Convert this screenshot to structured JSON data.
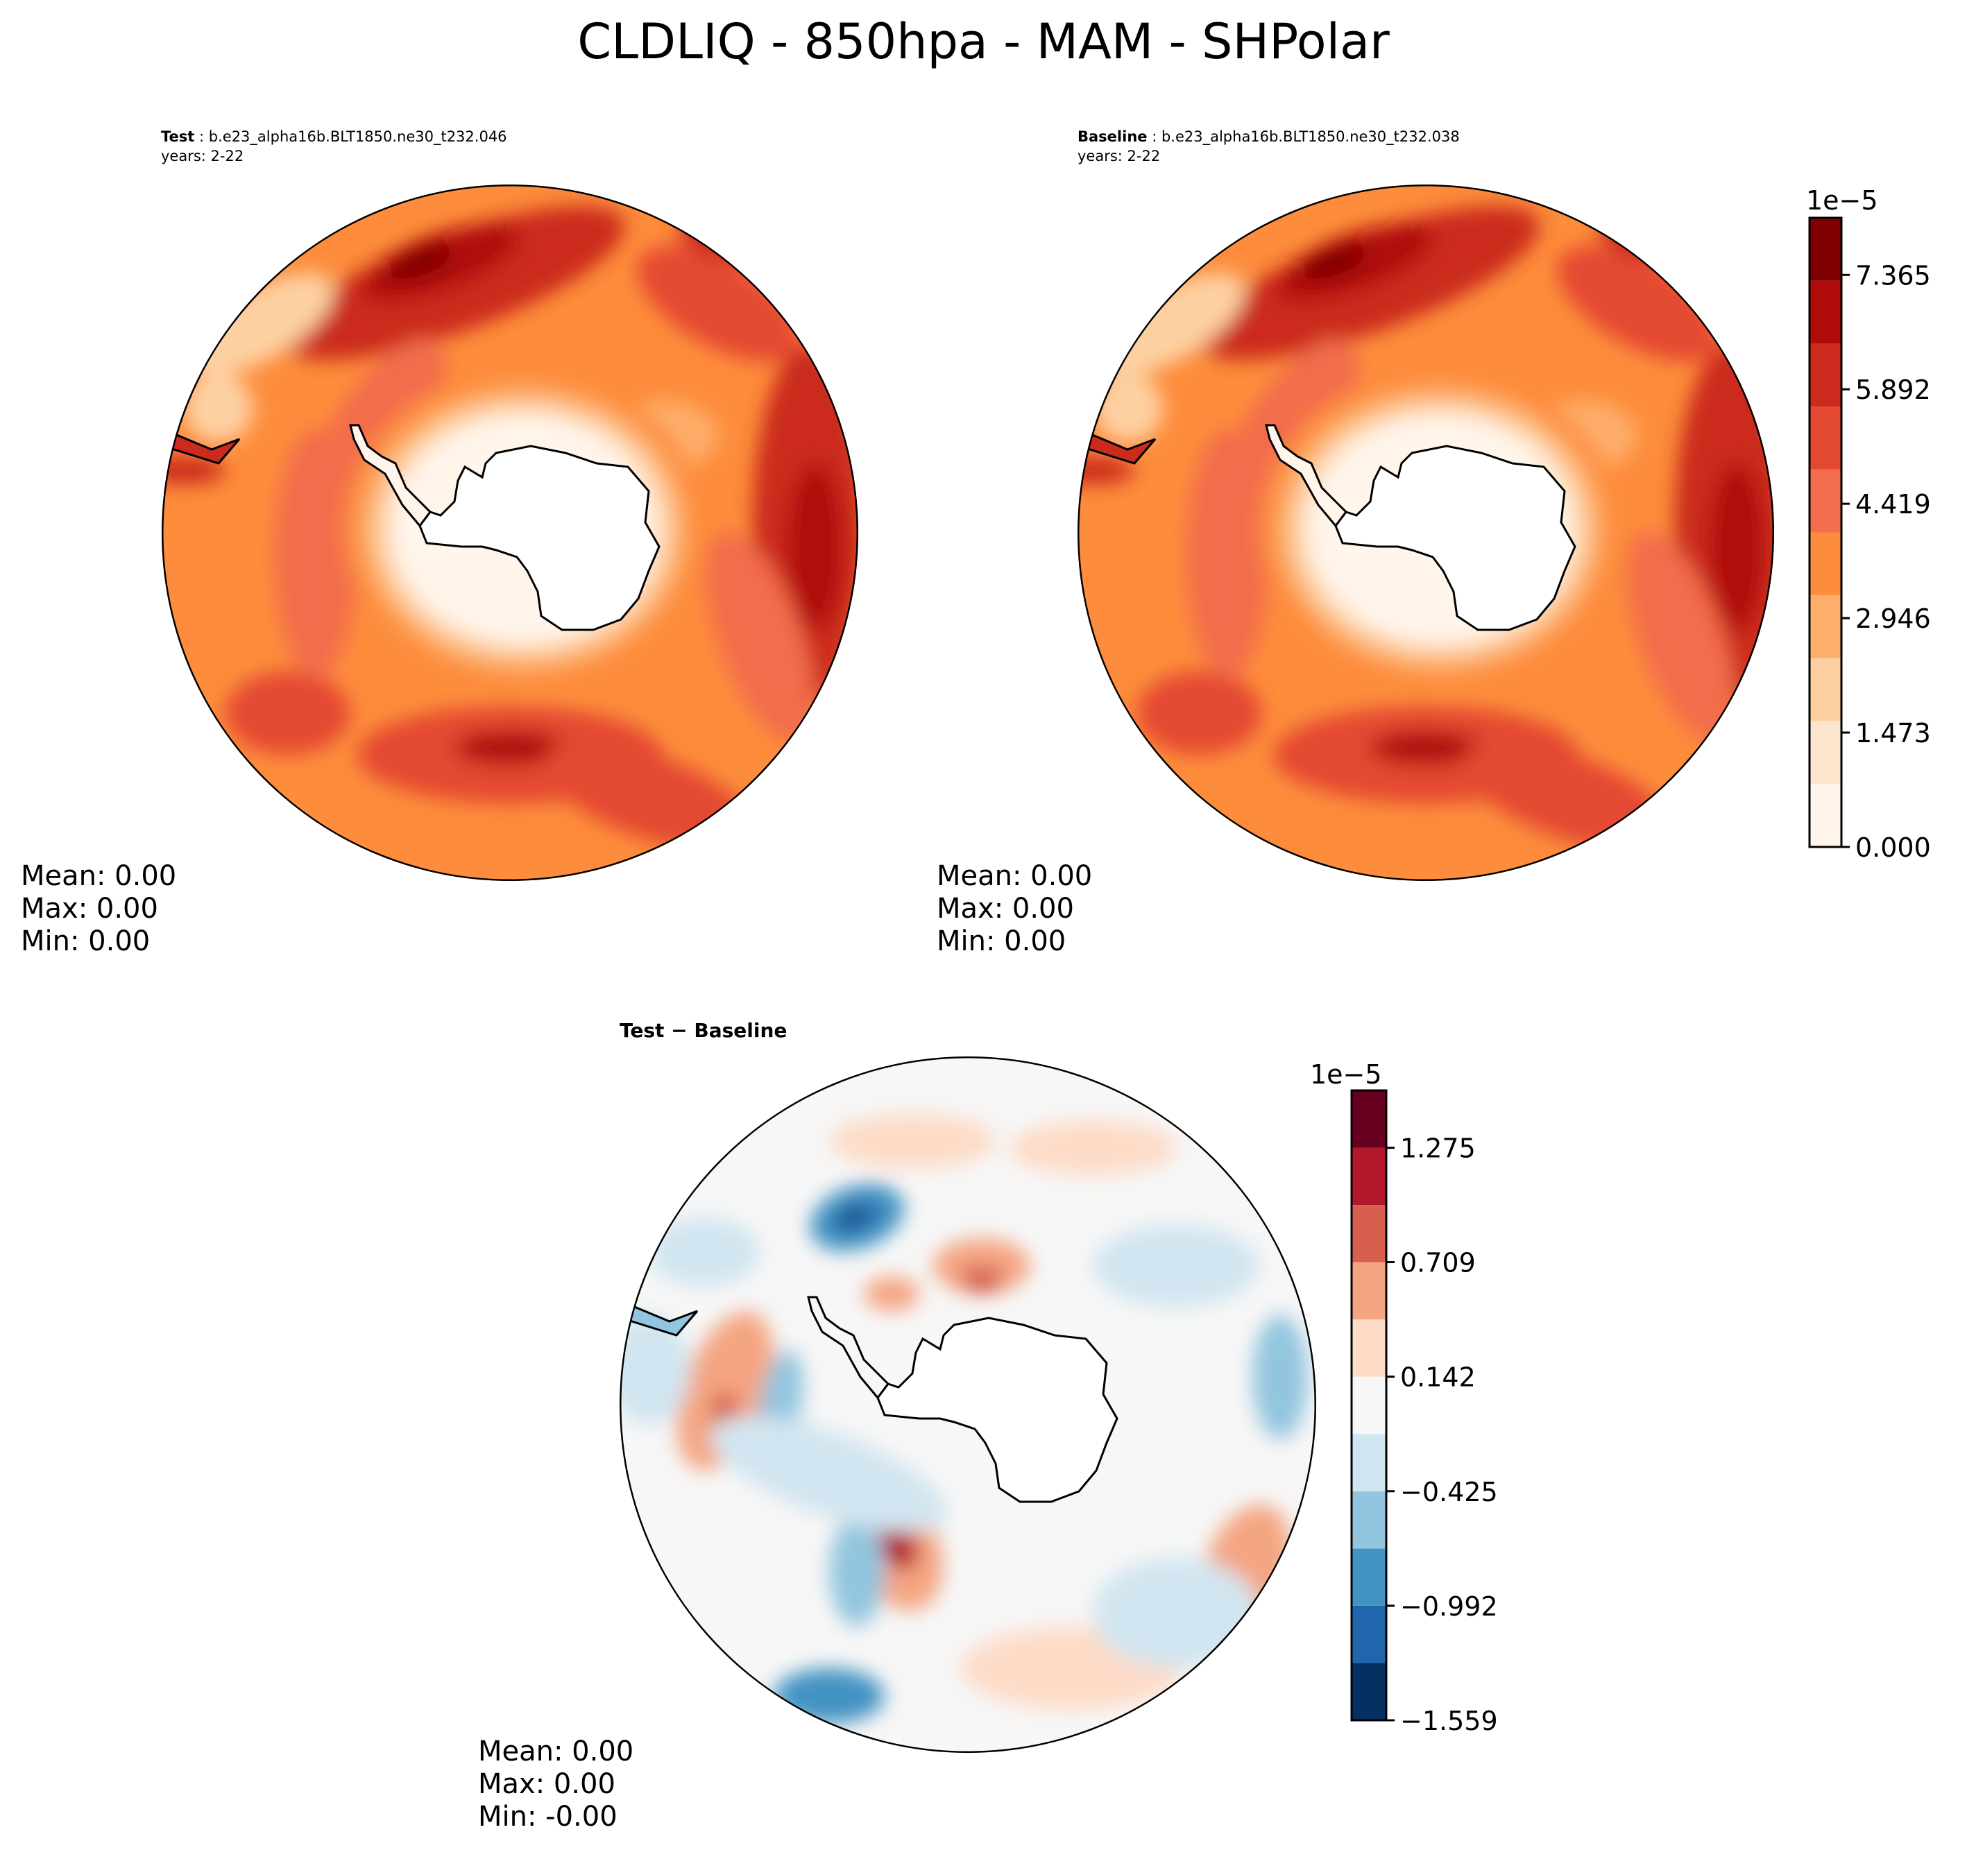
{
  "title": "CLDLIQ - 850hpa - MAM - SHPolar",
  "colors": {
    "reds": [
      "#fff5eb",
      "#fee6ce",
      "#fdd0a2",
      "#fdae6b",
      "#fd8d3c",
      "#f26d4b",
      "#e44a33",
      "#cb2a1c",
      "#b00a0a",
      "#7f0000"
    ],
    "rdbu": [
      "#053061",
      "#2166ac",
      "#4393c3",
      "#92c5de",
      "#d1e5f0",
      "#f7f7f7",
      "#fddbc7",
      "#f4a582",
      "#d6604d",
      "#b2182b",
      "#67001f"
    ]
  },
  "chart_data": [
    {
      "type": "heatmap",
      "panel": "test",
      "label": "Test",
      "case": "b.e23_alpha16b.BLT1850.ne30_t232.046",
      "years": "years: 2-22",
      "projection": "south-polar-stereographic",
      "stats": {
        "mean": "Mean:  0.00",
        "max": "Max:  0.00",
        "min": "Min:  0.00"
      }
    },
    {
      "type": "heatmap",
      "panel": "baseline",
      "label": "Baseline",
      "case": "b.e23_alpha16b.BLT1850.ne30_t232.038",
      "years": "years: 2-22",
      "projection": "south-polar-stereographic",
      "stats": {
        "mean": "Mean:  0.00",
        "max": "Max:  0.00",
        "min": "Min:  0.00"
      },
      "colorbar": {
        "scale_label": "1e−5",
        "range": [
          0,
          8.1
        ],
        "levels": 11,
        "ticks": [
          0.0,
          1.473,
          2.946,
          4.419,
          5.892,
          7.365
        ],
        "tick_labels": [
          "0.000",
          "1.473",
          "2.946",
          "4.419",
          "5.892",
          "7.365"
        ]
      }
    },
    {
      "type": "heatmap",
      "panel": "difference",
      "label": "Test − Baseline",
      "projection": "south-polar-stereographic",
      "stats": {
        "mean": "Mean:  0.00",
        "max": "Max:  0.00",
        "min": "Min: -0.00"
      },
      "colorbar": {
        "scale_label": "1e−5",
        "range": [
          -1.559,
          1.559
        ],
        "levels": 11,
        "ticks": [
          -1.559,
          -0.992,
          -0.425,
          0.142,
          0.709,
          1.275
        ],
        "tick_labels": [
          "−1.559",
          "−0.992",
          "−0.425",
          "0.142",
          "0.709",
          "1.275"
        ]
      }
    }
  ]
}
